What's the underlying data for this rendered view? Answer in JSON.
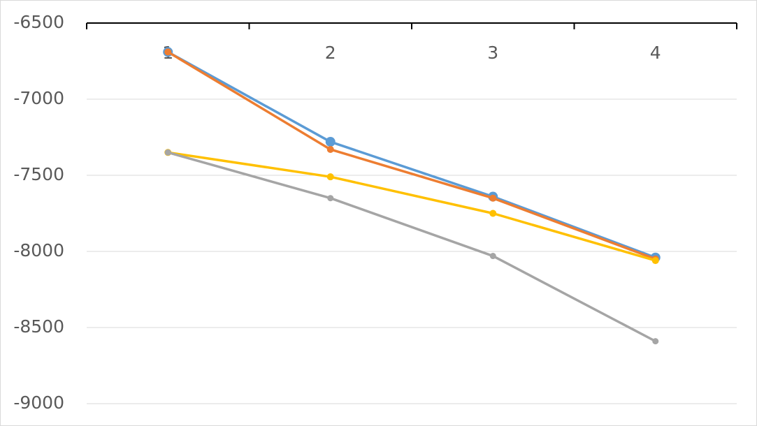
{
  "chart_data": {
    "type": "line",
    "categories": [
      "1",
      "2",
      "3",
      "4"
    ],
    "series": [
      {
        "color": "#5b9bd5",
        "values": [
          -6690,
          -7280,
          -7640,
          -8040
        ]
      },
      {
        "color": "#ed7d31",
        "values": [
          -6690,
          -7330,
          -7650,
          -8050
        ]
      },
      {
        "color": "#ffc000",
        "values": [
          -7350,
          -7510,
          -7750,
          -8060
        ]
      },
      {
        "color": "#a5a5a5",
        "values": [
          -7350,
          -7650,
          -8030,
          -8590
        ]
      }
    ],
    "ylim": [
      -9000,
      -6500
    ],
    "yticks": [
      -9000,
      -8500,
      -8000,
      -7500,
      -7000,
      -6500
    ],
    "grid": true
  }
}
